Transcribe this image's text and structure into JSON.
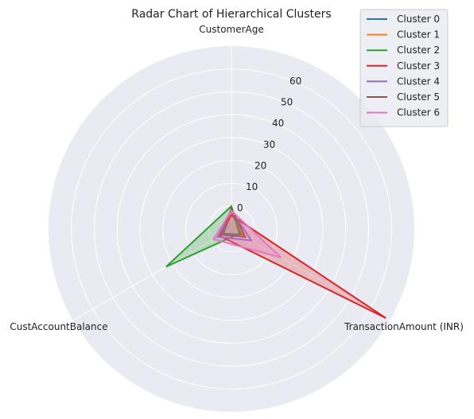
{
  "chart_data": {
    "type": "radar",
    "title": "Radar Chart of Hierarchical Clusters",
    "axes": [
      "CustomerAge",
      "TransactionAmount (INR)",
      "CustAccountBalance"
    ],
    "radial_ticks": [
      0,
      10,
      20,
      30,
      40,
      50,
      60
    ],
    "rlim": [
      -10,
      70
    ],
    "grid": true,
    "legend_position": "top-right",
    "series": [
      {
        "name": "Cluster 0",
        "color": "#1f77b4",
        "values": [
          -2,
          -5,
          -6
        ],
        "fill": false
      },
      {
        "name": "Cluster 1",
        "color": "#ff7f0e",
        "values": [
          -3,
          -4,
          -5
        ],
        "fill": false
      },
      {
        "name": "Cluster 2",
        "color": "#2ca02c",
        "values": [
          0,
          -6,
          23
        ],
        "fill": true
      },
      {
        "name": "Cluster 3",
        "color": "#d62728",
        "values": [
          -4,
          68,
          -4
        ],
        "fill": true
      },
      {
        "name": "Cluster 4",
        "color": "#9467bd",
        "values": [
          -2,
          0,
          -3
        ],
        "fill": false
      },
      {
        "name": "Cluster 5",
        "color": "#8c564b",
        "values": [
          -1,
          -3,
          -5
        ],
        "fill": false
      },
      {
        "name": "Cluster 6",
        "color": "#e377c2",
        "values": [
          -2,
          15,
          -1
        ],
        "fill": true
      }
    ]
  }
}
